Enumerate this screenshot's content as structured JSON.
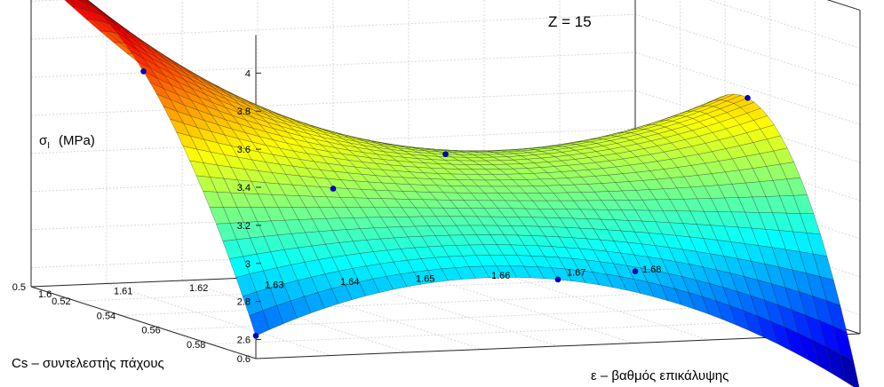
{
  "chart_data": {
    "type": "surface",
    "annotation": "Z = 15",
    "x_axis": {
      "label": "ε – βαθμός επικάλυψης",
      "range": [
        1.6,
        1.68
      ],
      "ticks": [
        "1.6",
        "1.61",
        "1.62",
        "1.63",
        "1.64",
        "1.65",
        "1.66",
        "1.67",
        "1.68"
      ]
    },
    "y_axis": {
      "label": "Cs – συντελεστής πάχους",
      "range": [
        0.5,
        0.6
      ],
      "ticks": [
        "0.5",
        "0.52",
        "0.54",
        "0.56",
        "0.58",
        "0.6"
      ]
    },
    "z_axis": {
      "label_main": "σ",
      "label_sub": "I",
      "label_unit": "(MPa)",
      "range": [
        2.5,
        4.2
      ],
      "ticks": [
        "2.6",
        "2.8",
        "3",
        "3.2",
        "3.4",
        "3.6",
        "3.8",
        "4"
      ]
    },
    "grid": true,
    "x_values": [
      1.6,
      1.64,
      1.68
    ],
    "y_values": [
      0.5,
      0.55,
      0.6
    ],
    "z_values": [
      [
        4.17,
        2.95,
        2.45
      ],
      [
        3.82,
        3.32,
        3.55
      ],
      [
        2.62,
        2.85,
        2.2
      ]
    ],
    "colormap": [
      "#00007f",
      "#0000ff",
      "#007fff",
      "#00ffff",
      "#7fff7f",
      "#ffff00",
      "#ff7f00",
      "#ff0000",
      "#7f0000"
    ]
  }
}
